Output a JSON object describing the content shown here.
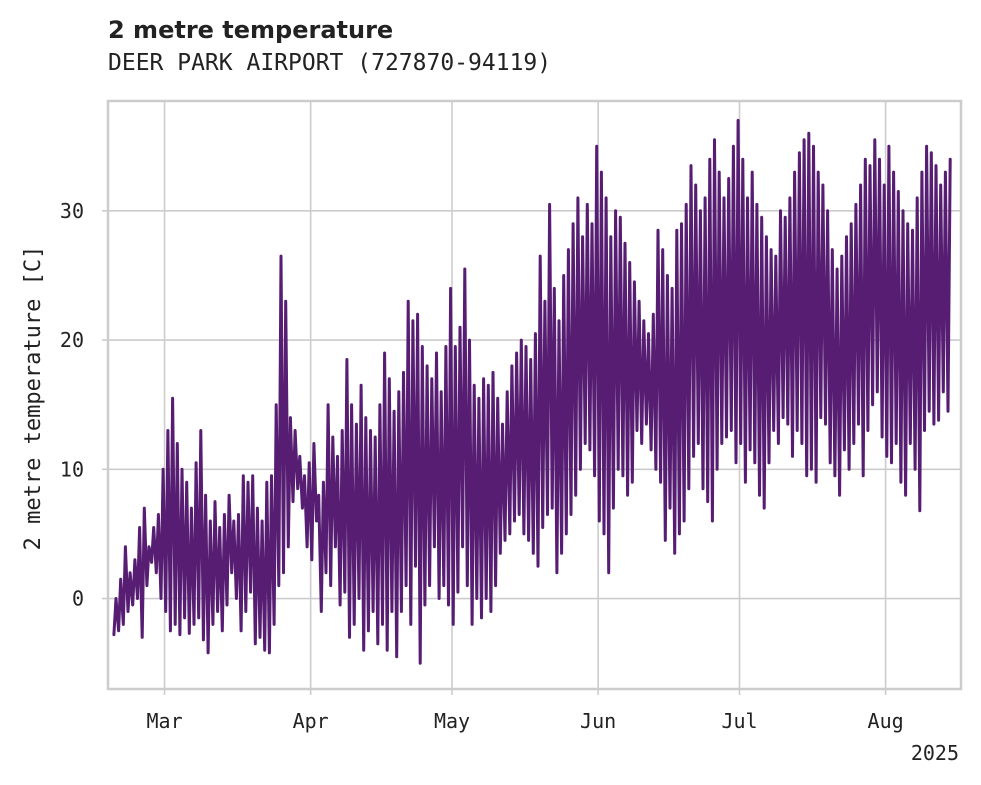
{
  "chart_data": {
    "type": "line",
    "title": "2 metre temperature",
    "subtitle": "DEER PARK AIRPORT (727870-94119)",
    "xlabel": "",
    "ylabel": "2 metre temperature [C]",
    "x_range": [
      "2025-02-17",
      "2025-08-17"
    ],
    "ylim": [
      -7,
      38.5
    ],
    "grid": true,
    "legend": "none",
    "line_color": "#561d72",
    "grid_color": "#cccccc",
    "x_ticks": [
      {
        "date": "2025-03-01",
        "label": "Mar"
      },
      {
        "date": "2025-04-01",
        "label": "Apr"
      },
      {
        "date": "2025-05-01",
        "label": "May"
      },
      {
        "date": "2025-06-01",
        "label": "Jun"
      },
      {
        "date": "2025-07-01",
        "label": "Jul"
      },
      {
        "date": "2025-08-01",
        "label": "Aug"
      }
    ],
    "x_offset_label": "2025",
    "y_ticks": [
      0,
      10,
      20,
      30
    ],
    "series": [
      {
        "sampling": "daily minimum and maximum",
        "x": [
          "2025-02-18",
          "2025-02-19",
          "2025-02-20",
          "2025-02-21",
          "2025-02-22",
          "2025-02-23",
          "2025-02-24",
          "2025-02-25",
          "2025-02-26",
          "2025-02-27",
          "2025-02-28",
          "2025-03-01",
          "2025-03-02",
          "2025-03-03",
          "2025-03-04",
          "2025-03-05",
          "2025-03-06",
          "2025-03-07",
          "2025-03-08",
          "2025-03-09",
          "2025-03-10",
          "2025-03-11",
          "2025-03-12",
          "2025-03-13",
          "2025-03-14",
          "2025-03-15",
          "2025-03-16",
          "2025-03-17",
          "2025-03-18",
          "2025-03-19",
          "2025-03-20",
          "2025-03-21",
          "2025-03-22",
          "2025-03-23",
          "2025-03-24",
          "2025-03-25",
          "2025-03-26",
          "2025-03-27",
          "2025-03-28",
          "2025-03-29",
          "2025-03-30",
          "2025-03-31",
          "2025-04-01",
          "2025-04-02",
          "2025-04-03",
          "2025-04-04",
          "2025-04-05",
          "2025-04-06",
          "2025-04-07",
          "2025-04-08",
          "2025-04-09",
          "2025-04-10",
          "2025-04-11",
          "2025-04-12",
          "2025-04-13",
          "2025-04-14",
          "2025-04-15",
          "2025-04-16",
          "2025-04-17",
          "2025-04-18",
          "2025-04-19",
          "2025-04-20",
          "2025-04-21",
          "2025-04-22",
          "2025-04-23",
          "2025-04-24",
          "2025-04-25",
          "2025-04-26",
          "2025-04-27",
          "2025-04-28",
          "2025-04-29",
          "2025-04-30",
          "2025-05-01",
          "2025-05-02",
          "2025-05-03",
          "2025-05-04",
          "2025-05-05",
          "2025-05-06",
          "2025-05-07",
          "2025-05-08",
          "2025-05-09",
          "2025-05-10",
          "2025-05-11",
          "2025-05-12",
          "2025-05-13",
          "2025-05-14",
          "2025-05-15",
          "2025-05-16",
          "2025-05-17",
          "2025-05-18",
          "2025-05-19",
          "2025-05-20",
          "2025-05-21",
          "2025-05-22",
          "2025-05-23",
          "2025-05-24",
          "2025-05-25",
          "2025-05-26",
          "2025-05-27",
          "2025-05-28",
          "2025-05-29",
          "2025-05-30",
          "2025-05-31",
          "2025-06-01",
          "2025-06-02",
          "2025-06-03",
          "2025-06-04",
          "2025-06-05",
          "2025-06-06",
          "2025-06-07",
          "2025-06-08",
          "2025-06-09",
          "2025-06-10",
          "2025-06-11",
          "2025-06-12",
          "2025-06-13",
          "2025-06-14",
          "2025-06-15",
          "2025-06-16",
          "2025-06-17",
          "2025-06-18",
          "2025-06-19",
          "2025-06-20",
          "2025-06-21",
          "2025-06-22",
          "2025-06-23",
          "2025-06-24",
          "2025-06-25",
          "2025-06-26",
          "2025-06-27",
          "2025-06-28",
          "2025-06-29",
          "2025-06-30",
          "2025-07-01",
          "2025-07-02",
          "2025-07-03",
          "2025-07-04",
          "2025-07-05",
          "2025-07-06",
          "2025-07-07",
          "2025-07-08",
          "2025-07-09",
          "2025-07-10",
          "2025-07-11",
          "2025-07-12",
          "2025-07-13",
          "2025-07-14",
          "2025-07-15",
          "2025-07-16",
          "2025-07-17",
          "2025-07-18",
          "2025-07-19",
          "2025-07-20",
          "2025-07-21",
          "2025-07-22",
          "2025-07-23",
          "2025-07-24",
          "2025-07-25",
          "2025-07-26",
          "2025-07-27",
          "2025-07-28",
          "2025-07-29",
          "2025-07-30",
          "2025-07-31",
          "2025-08-01",
          "2025-08-02",
          "2025-08-03",
          "2025-08-04",
          "2025-08-05",
          "2025-08-06",
          "2025-08-07",
          "2025-08-08",
          "2025-08-09",
          "2025-08-10",
          "2025-08-11",
          "2025-08-12",
          "2025-08-13",
          "2025-08-14",
          "2025-08-15"
        ],
        "min": [
          -2.8,
          -2.5,
          -2.0,
          -1.0,
          -0.5,
          0.0,
          -3.0,
          1.0,
          2.8,
          2.0,
          0.0,
          -1.0,
          -2.5,
          -2.0,
          -2.8,
          -1.5,
          -2.7,
          -2.0,
          -1.5,
          -3.2,
          -4.2,
          -2.0,
          -1.0,
          -2.5,
          -0.5,
          2.0,
          0.0,
          -2.5,
          -1.0,
          0.5,
          -3.5,
          -3.0,
          -4.0,
          -4.2,
          -2.0,
          1.0,
          2.0,
          4.0,
          7.5,
          8.5,
          7.0,
          4.0,
          3.0,
          6.0,
          -1.0,
          2.0,
          1.0,
          4.0,
          -0.5,
          0.5,
          -3.0,
          -2.0,
          0.0,
          -4.0,
          -2.5,
          -1.0,
          -3.5,
          -2.0,
          -4.0,
          -1.0,
          -4.5,
          -1.0,
          1.0,
          -2.0,
          2.5,
          -5.0,
          -0.5,
          1.0,
          4.0,
          0.0,
          1.0,
          -0.5,
          -2.0,
          0.5,
          4.0,
          1.0,
          -2.0,
          0.0,
          -1.5,
          0.0,
          -1.0,
          1.0,
          3.5,
          4.5,
          5.0,
          6.0,
          6.5,
          5.0,
          4.5,
          3.5,
          2.5,
          5.5,
          6.5,
          7.0,
          2.0,
          3.5,
          5.0,
          6.5,
          8.0,
          10.0,
          12.0,
          11.5,
          9.5,
          6.0,
          5.0,
          2.0,
          7.0,
          10.0,
          9.5,
          8.0,
          9.0,
          13.0,
          12.0,
          13.5,
          11.5,
          10.0,
          9.0,
          4.5,
          7.0,
          3.5,
          5.0,
          6.0,
          8.5,
          11.0,
          12.0,
          8.5,
          7.5,
          6.0,
          10.0,
          12.0,
          12.5,
          13.0,
          10.5,
          12.0,
          9.0,
          11.5,
          10.5,
          8.0,
          7.0,
          10.5,
          13.0,
          12.0,
          14.0,
          13.5,
          11.0,
          13.0,
          12.0,
          9.5,
          10.0,
          9.0,
          14.0,
          13.5,
          10.5,
          9.5,
          8.0,
          11.5,
          10.0,
          12.0,
          13.5,
          9.5,
          13.0,
          15.0,
          16.0,
          12.5,
          11.0,
          10.5,
          12.0,
          9.0,
          8.0,
          12.0,
          10.0,
          6.8,
          13.0,
          14.5,
          13.5,
          13.8,
          16.0,
          14.5
        ],
        "max": [
          0.0,
          1.5,
          4.0,
          2.0,
          3.0,
          5.5,
          7.0,
          4.0,
          5.5,
          6.5,
          10.0,
          13.0,
          15.5,
          12.0,
          10.0,
          9.0,
          7.0,
          10.5,
          13.0,
          8.0,
          6.0,
          7.5,
          5.5,
          6.5,
          8.0,
          6.0,
          6.5,
          9.5,
          9.0,
          9.5,
          7.0,
          6.0,
          9.0,
          9.5,
          15.0,
          26.5,
          23.0,
          14.0,
          13.0,
          11.0,
          9.5,
          10.5,
          12.0,
          8.0,
          9.0,
          15.0,
          12.5,
          11.0,
          13.0,
          18.5,
          15.0,
          13.5,
          16.5,
          14.0,
          13.0,
          12.5,
          15.0,
          19.0,
          17.0,
          14.5,
          16.0,
          17.5,
          23.0,
          21.5,
          22.0,
          19.5,
          18.0,
          17.0,
          19.0,
          16.0,
          19.5,
          24.0,
          19.5,
          21.0,
          25.5,
          20.0,
          16.5,
          15.5,
          17.0,
          16.5,
          17.5,
          15.5,
          13.5,
          16.0,
          18.0,
          19.0,
          20.0,
          19.5,
          18.5,
          20.5,
          26.5,
          23.0,
          30.5,
          24.0,
          21.5,
          25.0,
          27.0,
          29.0,
          31.0,
          28.0,
          30.5,
          29.0,
          35.0,
          33.0,
          31.0,
          28.0,
          30.0,
          29.5,
          27.5,
          26.0,
          24.5,
          23.0,
          21.5,
          20.5,
          22.0,
          28.5,
          27.0,
          25.0,
          24.0,
          28.5,
          29.0,
          30.5,
          33.5,
          32.0,
          30.0,
          31.0,
          34.0,
          35.5,
          33.0,
          31.0,
          32.5,
          35.0,
          37.0,
          34.0,
          31.0,
          33.0,
          30.5,
          29.5,
          28.0,
          27.0,
          26.5,
          30.0,
          29.5,
          31.0,
          33.0,
          34.5,
          35.5,
          36.0,
          35.0,
          33.0,
          32.0,
          30.0,
          27.0,
          25.5,
          26.5,
          28.0,
          29.0,
          30.5,
          32.0,
          34.0,
          33.5,
          35.5,
          34.0,
          32.0,
          35.0,
          33.0,
          31.5,
          30.0,
          29.0,
          28.5,
          31.0,
          33.0,
          35.0,
          34.5,
          33.5,
          32.0,
          33.0,
          34.0,
          33.0,
          32.5
        ]
      }
    ]
  }
}
